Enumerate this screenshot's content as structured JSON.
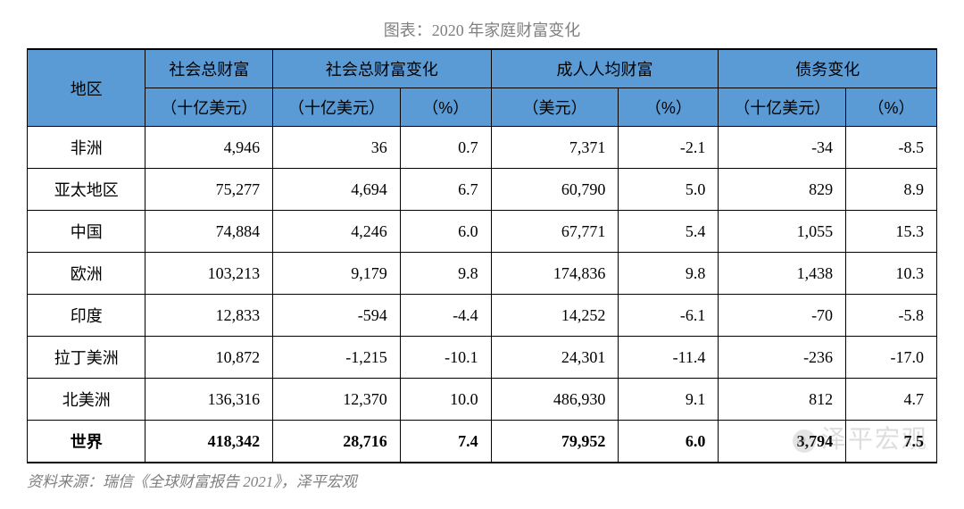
{
  "title": "图表：2020 年家庭财富变化",
  "source": "资料来源：瑞信《全球财富报告 2021》，泽平宏观",
  "watermark": "泽平宏观",
  "table": {
    "header_bg": "#5b9bd5",
    "border_color": "#000000",
    "columns_top": {
      "region": "地区",
      "total_wealth": "社会总财富",
      "total_wealth_change": "社会总财富变化",
      "adult_mean_wealth": "成人人均财富",
      "debt_change": "债务变化"
    },
    "columns_sub": {
      "total_wealth_unit": "（十亿美元）",
      "total_change_unit": "（十亿美元）",
      "total_change_pct": "（%）",
      "adult_unit": "（美元）",
      "adult_pct": "（%）",
      "debt_unit": "（十亿美元）",
      "debt_pct": "（%）"
    },
    "col_widths": [
      "13%",
      "14%",
      "14%",
      "10%",
      "14%",
      "11%",
      "14%",
      "10%"
    ],
    "rows": [
      {
        "region": "非洲",
        "tw": "4,946",
        "tc": "36",
        "tcp": "0.7",
        "aw": "7,371",
        "awp": "-2.1",
        "dc": "-34",
        "dcp": "-8.5",
        "bold": false
      },
      {
        "region": "亚太地区",
        "tw": "75,277",
        "tc": "4,694",
        "tcp": "6.7",
        "aw": "60,790",
        "awp": "5.0",
        "dc": "829",
        "dcp": "8.9",
        "bold": false
      },
      {
        "region": "中国",
        "tw": "74,884",
        "tc": "4,246",
        "tcp": "6.0",
        "aw": "67,771",
        "awp": "5.4",
        "dc": "1,055",
        "dcp": "15.3",
        "bold": false
      },
      {
        "region": "欧洲",
        "tw": "103,213",
        "tc": "9,179",
        "tcp": "9.8",
        "aw": "174,836",
        "awp": "9.8",
        "dc": "1,438",
        "dcp": "10.3",
        "bold": false
      },
      {
        "region": "印度",
        "tw": "12,833",
        "tc": "-594",
        "tcp": "-4.4",
        "aw": "14,252",
        "awp": "-6.1",
        "dc": "-70",
        "dcp": "-5.8",
        "bold": false
      },
      {
        "region": "拉丁美洲",
        "tw": "10,872",
        "tc": "-1,215",
        "tcp": "-10.1",
        "aw": "24,301",
        "awp": "-11.4",
        "dc": "-236",
        "dcp": "-17.0",
        "bold": false
      },
      {
        "region": "北美洲",
        "tw": "136,316",
        "tc": "12,370",
        "tcp": "10.0",
        "aw": "486,930",
        "awp": "9.1",
        "dc": "812",
        "dcp": "4.7",
        "bold": false
      },
      {
        "region": "世界",
        "tw": "418,342",
        "tc": "28,716",
        "tcp": "7.4",
        "aw": "79,952",
        "awp": "6.0",
        "dc": "3,794",
        "dcp": "7.5",
        "bold": true
      }
    ]
  }
}
